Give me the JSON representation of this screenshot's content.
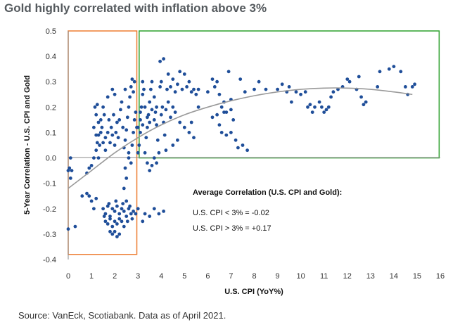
{
  "page": {
    "title": "Gold highly correlated with inflation above 3%",
    "source": "Source: VanEck, Scotiabank. Data as of April 2021."
  },
  "chart_data": {
    "type": "scatter",
    "title": "Gold highly correlated with inflation above 3%",
    "xlabel": "U.S. CPI (YoY%)",
    "ylabel": "5-Year Correlation - U.S. CPI and Gold",
    "xlim": [
      0,
      16
    ],
    "ylim": [
      -0.4,
      0.5
    ],
    "x_ticks": [
      "0",
      "1",
      "2",
      "3",
      "4",
      "5",
      "6",
      "7",
      "8",
      "9",
      "10",
      "11",
      "12",
      "13",
      "14",
      "15",
      "16"
    ],
    "y_ticks": [
      "-0.4",
      "-0.3",
      "-0.2",
      "-0.1",
      "0.0",
      "0.1",
      "0.2",
      "0.3",
      "0.4",
      "0.5"
    ],
    "grid": false,
    "colors": {
      "points": "#1f4e99",
      "trend": "#9a9a9a",
      "box_low": "#ed7d31",
      "box_high": "#2ca02c"
    },
    "regions": [
      {
        "label": "CPI below 3%",
        "x_range": [
          0,
          2.95
        ],
        "y_range": [
          -0.38,
          0.5
        ],
        "color": "#ed7d31"
      },
      {
        "label": "CPI above 3%",
        "x_range": [
          3.05,
          15.95
        ],
        "y_range": [
          0.0,
          0.5
        ],
        "color": "#2ca02c"
      }
    ],
    "trendline": {
      "x": [
        0,
        1,
        2,
        3,
        4,
        5,
        6,
        7,
        8,
        9,
        10,
        11,
        12,
        13,
        14,
        14.8
      ],
      "y": [
        -0.12,
        -0.05,
        0.02,
        0.08,
        0.13,
        0.17,
        0.2,
        0.225,
        0.245,
        0.26,
        0.27,
        0.275,
        0.275,
        0.27,
        0.26,
        0.25
      ]
    },
    "annotation": {
      "title": "Average Correlation (U.S. CPI and Gold):",
      "lines": [
        "U.S. CPI < 3% = -0.02",
        "U.S. CPI > 3% = +0.17"
      ]
    },
    "series": [
      {
        "points": [
          [
            0.0,
            -0.05
          ],
          [
            0.05,
            -0.04
          ],
          [
            0.1,
            -0.08
          ],
          [
            0.1,
            0.0
          ],
          [
            0.15,
            -0.05
          ],
          [
            0.0,
            -0.28
          ],
          [
            0.3,
            -0.27
          ],
          [
            0.6,
            -0.15
          ],
          [
            0.8,
            -0.14
          ],
          [
            0.9,
            -0.15
          ],
          [
            1.0,
            -0.17
          ],
          [
            1.1,
            -0.2
          ],
          [
            1.2,
            -0.16
          ],
          [
            0.8,
            -0.06
          ],
          [
            0.9,
            -0.04
          ],
          [
            1.0,
            -0.03
          ],
          [
            1.1,
            0.0
          ],
          [
            1.2,
            0.03
          ],
          [
            1.25,
            0.06
          ],
          [
            1.3,
            0.09
          ],
          [
            1.1,
            0.12
          ],
          [
            1.2,
            0.09
          ],
          [
            1.3,
            0.0
          ],
          [
            1.35,
            0.05
          ],
          [
            1.4,
            0.1
          ],
          [
            1.4,
            0.15
          ],
          [
            1.2,
            0.17
          ],
          [
            1.15,
            0.2
          ],
          [
            1.25,
            0.21
          ],
          [
            1.3,
            0.14
          ],
          [
            1.45,
            0.12
          ],
          [
            1.5,
            0.2
          ],
          [
            1.55,
            0.17
          ],
          [
            1.6,
            0.08
          ],
          [
            1.5,
            0.06
          ],
          [
            1.6,
            0.03
          ],
          [
            1.7,
            0.1
          ],
          [
            1.75,
            0.15
          ],
          [
            1.8,
            0.06
          ],
          [
            1.85,
            0.12
          ],
          [
            1.9,
            0.09
          ],
          [
            1.95,
            0.17
          ],
          [
            2.0,
            0.05
          ],
          [
            2.05,
            0.1
          ],
          [
            2.1,
            0.14
          ],
          [
            2.15,
            0.08
          ],
          [
            2.2,
            0.15
          ],
          [
            2.25,
            0.19
          ],
          [
            2.3,
            0.22
          ],
          [
            2.35,
            0.12
          ],
          [
            2.4,
            0.04
          ],
          [
            2.45,
            0.07
          ],
          [
            2.5,
            0.11
          ],
          [
            2.55,
            0.16
          ],
          [
            2.6,
            0.2
          ],
          [
            2.65,
            0.24
          ],
          [
            2.7,
            0.28
          ],
          [
            2.75,
            0.31
          ],
          [
            2.8,
            0.26
          ],
          [
            2.85,
            0.3
          ],
          [
            2.9,
            0.18
          ],
          [
            2.95,
            0.12
          ],
          [
            2.6,
            0.02
          ],
          [
            2.7,
            -0.02
          ],
          [
            2.75,
            0.05
          ],
          [
            2.8,
            0.1
          ],
          [
            2.45,
            -0.04
          ],
          [
            2.5,
            -0.08
          ],
          [
            2.4,
            -0.12
          ],
          [
            2.5,
            -0.17
          ],
          [
            2.6,
            0.0
          ],
          [
            2.85,
            0.15
          ],
          [
            1.9,
            0.27
          ],
          [
            2.0,
            0.25
          ],
          [
            1.7,
            0.24
          ],
          [
            2.45,
            0.27
          ],
          [
            1.5,
            -0.2
          ],
          [
            1.6,
            -0.22
          ],
          [
            1.7,
            -0.19
          ],
          [
            1.8,
            -0.23
          ],
          [
            1.9,
            -0.2
          ],
          [
            2.0,
            -0.21
          ],
          [
            2.1,
            -0.19
          ],
          [
            2.2,
            -0.22
          ],
          [
            2.3,
            -0.2
          ],
          [
            2.4,
            -0.21
          ],
          [
            2.5,
            -0.23
          ],
          [
            2.6,
            -0.2
          ],
          [
            2.7,
            -0.22
          ],
          [
            2.8,
            -0.21
          ],
          [
            2.9,
            -0.22
          ],
          [
            3.0,
            -0.2
          ],
          [
            1.6,
            -0.25
          ],
          [
            1.7,
            -0.26
          ],
          [
            1.8,
            -0.24
          ],
          [
            1.9,
            -0.27
          ],
          [
            2.0,
            -0.25
          ],
          [
            2.1,
            -0.26
          ],
          [
            2.2,
            -0.24
          ],
          [
            2.3,
            -0.25
          ],
          [
            2.4,
            -0.27
          ],
          [
            1.8,
            -0.29
          ],
          [
            1.9,
            -0.3
          ],
          [
            2.0,
            -0.29
          ],
          [
            2.1,
            -0.31
          ],
          [
            2.2,
            -0.3
          ],
          [
            1.75,
            -0.18
          ],
          [
            2.05,
            -0.17
          ],
          [
            2.35,
            -0.18
          ],
          [
            2.65,
            -0.19
          ],
          [
            1.55,
            -0.23
          ],
          [
            2.55,
            -0.25
          ],
          [
            2.75,
            -0.24
          ],
          [
            3.0,
            0.02
          ],
          [
            3.05,
            0.05
          ],
          [
            3.1,
            0.1
          ],
          [
            3.1,
            0.15
          ],
          [
            3.15,
            0.2
          ],
          [
            3.2,
            0.25
          ],
          [
            3.2,
            0.3
          ],
          [
            3.25,
            0.27
          ],
          [
            3.3,
            0.02
          ],
          [
            3.35,
            0.08
          ],
          [
            3.4,
            0.12
          ],
          [
            3.45,
            0.17
          ],
          [
            3.5,
            0.22
          ],
          [
            3.55,
            0.27
          ],
          [
            3.6,
            0.3
          ],
          [
            3.7,
            0.24
          ],
          [
            3.75,
            0.18
          ],
          [
            3.8,
            0.13
          ],
          [
            3.85,
            0.07
          ],
          [
            3.9,
            0.02
          ],
          [
            3.95,
            0.28
          ],
          [
            4.0,
            0.3
          ],
          [
            4.05,
            0.2
          ],
          [
            4.1,
            0.14
          ],
          [
            4.15,
            0.09
          ],
          [
            4.2,
            0.03
          ],
          [
            4.25,
            0.27
          ],
          [
            4.3,
            0.33
          ],
          [
            4.4,
            0.28
          ],
          [
            4.5,
            0.31
          ],
          [
            4.6,
            0.26
          ],
          [
            4.7,
            0.29
          ],
          [
            4.8,
            0.34
          ],
          [
            4.9,
            0.27
          ],
          [
            5.0,
            0.33
          ],
          [
            5.1,
            0.28
          ],
          [
            5.2,
            0.3
          ],
          [
            5.3,
            0.26
          ],
          [
            5.4,
            0.27
          ],
          [
            5.5,
            0.25
          ],
          [
            5.6,
            0.27
          ],
          [
            3.95,
            0.38
          ],
          [
            4.1,
            0.39
          ],
          [
            3.4,
            -0.02
          ],
          [
            3.5,
            -0.05
          ],
          [
            3.6,
            -0.03
          ],
          [
            3.7,
            0.0
          ],
          [
            3.8,
            -0.02
          ],
          [
            3.3,
            -0.22
          ],
          [
            3.5,
            -0.23
          ],
          [
            3.7,
            -0.2
          ],
          [
            3.9,
            -0.22
          ],
          [
            4.1,
            -0.21
          ],
          [
            3.2,
            -0.25
          ],
          [
            4.0,
            0.17
          ],
          [
            4.2,
            0.19
          ],
          [
            4.4,
            0.16
          ],
          [
            4.6,
            0.18
          ],
          [
            4.8,
            0.14
          ],
          [
            5.0,
            0.12
          ],
          [
            5.2,
            0.1
          ],
          [
            5.4,
            0.08
          ],
          [
            4.5,
            0.05
          ],
          [
            4.7,
            0.07
          ],
          [
            3.0,
            0.12
          ],
          [
            3.1,
            0.18
          ],
          [
            3.2,
            0.13
          ],
          [
            3.3,
            0.2
          ],
          [
            3.4,
            0.16
          ],
          [
            3.5,
            0.14
          ],
          [
            3.6,
            0.19
          ],
          [
            3.7,
            0.15
          ],
          [
            3.8,
            0.2
          ],
          [
            4.3,
            0.22
          ],
          [
            4.5,
            0.2
          ],
          [
            5.6,
            0.2
          ],
          [
            5.3,
            0.14
          ],
          [
            6.2,
            0.31
          ],
          [
            6.3,
            0.28
          ],
          [
            6.4,
            0.3
          ],
          [
            6.5,
            0.25
          ],
          [
            6.6,
            0.2
          ],
          [
            6.7,
            0.22
          ],
          [
            6.8,
            0.18
          ],
          [
            6.9,
            0.34
          ],
          [
            7.0,
            0.19
          ],
          [
            7.1,
            0.15
          ],
          [
            7.2,
            0.07
          ],
          [
            7.3,
            0.04
          ],
          [
            6.5,
            0.13
          ],
          [
            6.6,
            0.1
          ],
          [
            6.8,
            0.09
          ],
          [
            7.0,
            0.1
          ],
          [
            7.4,
            0.31
          ],
          [
            7.6,
            0.26
          ],
          [
            7.7,
            0.03
          ],
          [
            7.5,
            0.05
          ],
          [
            6.0,
            0.26
          ],
          [
            6.4,
            0.17
          ],
          [
            6.7,
            0.18
          ],
          [
            7.0,
            0.23
          ],
          [
            6.2,
            0.16
          ],
          [
            8.0,
            0.27
          ],
          [
            8.2,
            0.3
          ],
          [
            8.5,
            0.27
          ],
          [
            9.0,
            0.27
          ],
          [
            9.2,
            0.29
          ],
          [
            9.4,
            0.26
          ],
          [
            9.6,
            0.22
          ],
          [
            9.8,
            0.26
          ],
          [
            10.0,
            0.25
          ],
          [
            10.2,
            0.26
          ],
          [
            10.4,
            0.21
          ],
          [
            10.5,
            0.18
          ],
          [
            10.6,
            0.2
          ],
          [
            10.8,
            0.22
          ],
          [
            10.9,
            0.2
          ],
          [
            11.0,
            0.18
          ],
          [
            11.1,
            0.19
          ],
          [
            11.2,
            0.2
          ],
          [
            11.3,
            0.24
          ],
          [
            11.4,
            0.26
          ],
          [
            11.8,
            0.28
          ],
          [
            12.0,
            0.31
          ],
          [
            12.1,
            0.3
          ],
          [
            12.4,
            0.27
          ],
          [
            12.5,
            0.32
          ],
          [
            12.6,
            0.24
          ],
          [
            12.7,
            0.21
          ],
          [
            12.8,
            0.22
          ],
          [
            13.3,
            0.28
          ],
          [
            13.4,
            0.34
          ],
          [
            13.8,
            0.35
          ],
          [
            14.0,
            0.36
          ],
          [
            14.3,
            0.34
          ],
          [
            14.5,
            0.28
          ],
          [
            14.6,
            0.25
          ],
          [
            14.8,
            0.28
          ],
          [
            14.9,
            0.29
          ],
          [
            9.5,
            0.28
          ],
          [
            10.3,
            0.2
          ],
          [
            11.6,
            0.27
          ]
        ]
      }
    ]
  }
}
